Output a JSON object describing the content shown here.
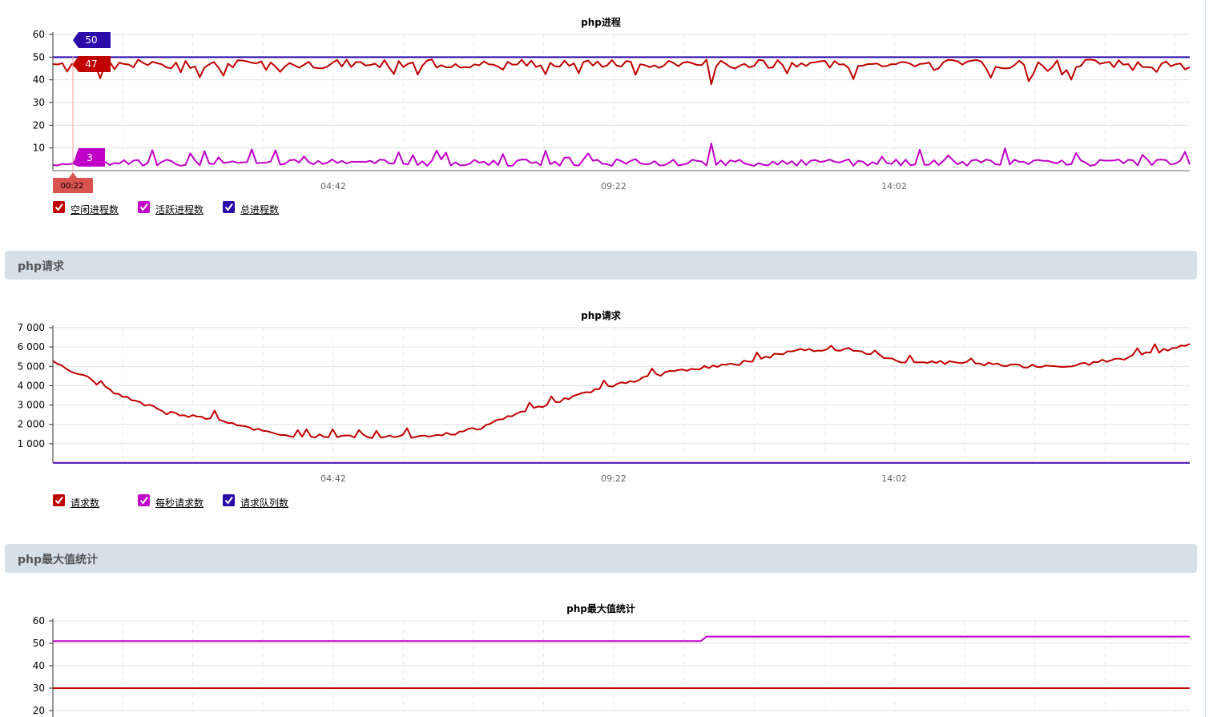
{
  "colors": {
    "red": "#c00000",
    "magenta": "#c000c8",
    "navy": "#2a0aa8",
    "grid": "#e0e0e0",
    "axis": "#333333",
    "section_bg": "#d7e0e7",
    "tooltip_time_bg": "#d9534f"
  },
  "sections": {
    "requests_header": "php请求",
    "max_header": "php最大值统计"
  },
  "charts": {
    "processes": {
      "legend": [
        {
          "label": "空闲进程数",
          "color": "#c00000"
        },
        {
          "label": "活跃进程数",
          "color": "#c000c8"
        },
        {
          "label": "总进程数",
          "color": "#2a0aa8"
        }
      ],
      "tooltip": {
        "total": "50",
        "idle": "47",
        "active": "3",
        "time": "00:22"
      }
    },
    "requests": {
      "legend": [
        {
          "label": "请求数",
          "color": "#c00000"
        },
        {
          "label": "每秒请求数",
          "color": "#c000c8"
        },
        {
          "label": "请求队列数",
          "color": "#2a0aa8"
        }
      ]
    }
  },
  "chart_data": [
    {
      "type": "line",
      "title": "php进程",
      "x_ticks": [
        "04:42",
        "09:22",
        "14:02"
      ],
      "ylim": [
        0,
        60
      ],
      "y_ticks": [
        10,
        20,
        30,
        40,
        50,
        60
      ],
      "grid": true,
      "legend_position": "bottom-left",
      "series": [
        {
          "name": "空闲进程数",
          "color": "#c00000",
          "pattern": "fluctuating",
          "range": [
            38,
            49
          ],
          "typical": 47
        },
        {
          "name": "活跃进程数",
          "color": "#c000c8",
          "pattern": "fluctuating",
          "range": [
            1,
            12
          ],
          "typical": 3
        },
        {
          "name": "总进程数",
          "color": "#2a0aa8",
          "pattern": "constant",
          "values": [
            50
          ]
        }
      ],
      "tooltip_at": {
        "time": "00:22",
        "总进程数": 50,
        "空闲进程数": 47,
        "活跃进程数": 3
      }
    },
    {
      "type": "line",
      "title": "php请求",
      "x_ticks": [
        "04:42",
        "09:22",
        "14:02"
      ],
      "ylim": [
        0,
        7000
      ],
      "y_ticks": [
        1000,
        2000,
        3000,
        4000,
        5000,
        6000,
        7000
      ],
      "y_tick_labels": [
        "1 000",
        "2 000",
        "3 000",
        "4 000",
        "5 000",
        "6 000",
        "7 000"
      ],
      "grid": true,
      "legend_position": "bottom-left",
      "series": [
        {
          "name": "请求数",
          "color": "#c00000",
          "anchor_x": [
            0,
            0.03,
            0.06,
            0.1,
            0.15,
            0.2,
            0.25,
            0.3,
            0.35,
            0.38,
            0.4,
            0.45,
            0.5,
            0.55,
            0.6,
            0.65,
            0.7,
            0.75,
            0.8,
            0.85,
            0.9,
            0.95,
            1.0
          ],
          "anchor_y": [
            5200,
            4400,
            3500,
            2600,
            2200,
            1400,
            1400,
            1350,
            1500,
            1900,
            2400,
            3300,
            4100,
            4800,
            5100,
            5800,
            5900,
            5200,
            5200,
            5000,
            5050,
            5500,
            6100
          ]
        },
        {
          "name": "每秒请求数",
          "color": "#c000c8",
          "pattern": "near-zero",
          "values": [
            0
          ]
        },
        {
          "name": "请求队列数",
          "color": "#2a0aa8",
          "pattern": "near-zero",
          "values": [
            0
          ]
        }
      ]
    },
    {
      "type": "line",
      "title": "php最大值统计",
      "x_ticks": [],
      "ylim": [
        0,
        60
      ],
      "y_ticks": [
        20,
        30,
        40,
        50,
        60
      ],
      "grid": true,
      "series": [
        {
          "color": "#c000c8",
          "segments": [
            {
              "x_from": 0,
              "x_to": 0.57,
              "value": 51
            },
            {
              "x_from": 0.575,
              "x_to": 1.0,
              "value": 53
            }
          ]
        },
        {
          "color": "#c00000",
          "segments": [
            {
              "x_from": 0,
              "x_to": 1.0,
              "value": 30
            }
          ]
        }
      ]
    }
  ]
}
